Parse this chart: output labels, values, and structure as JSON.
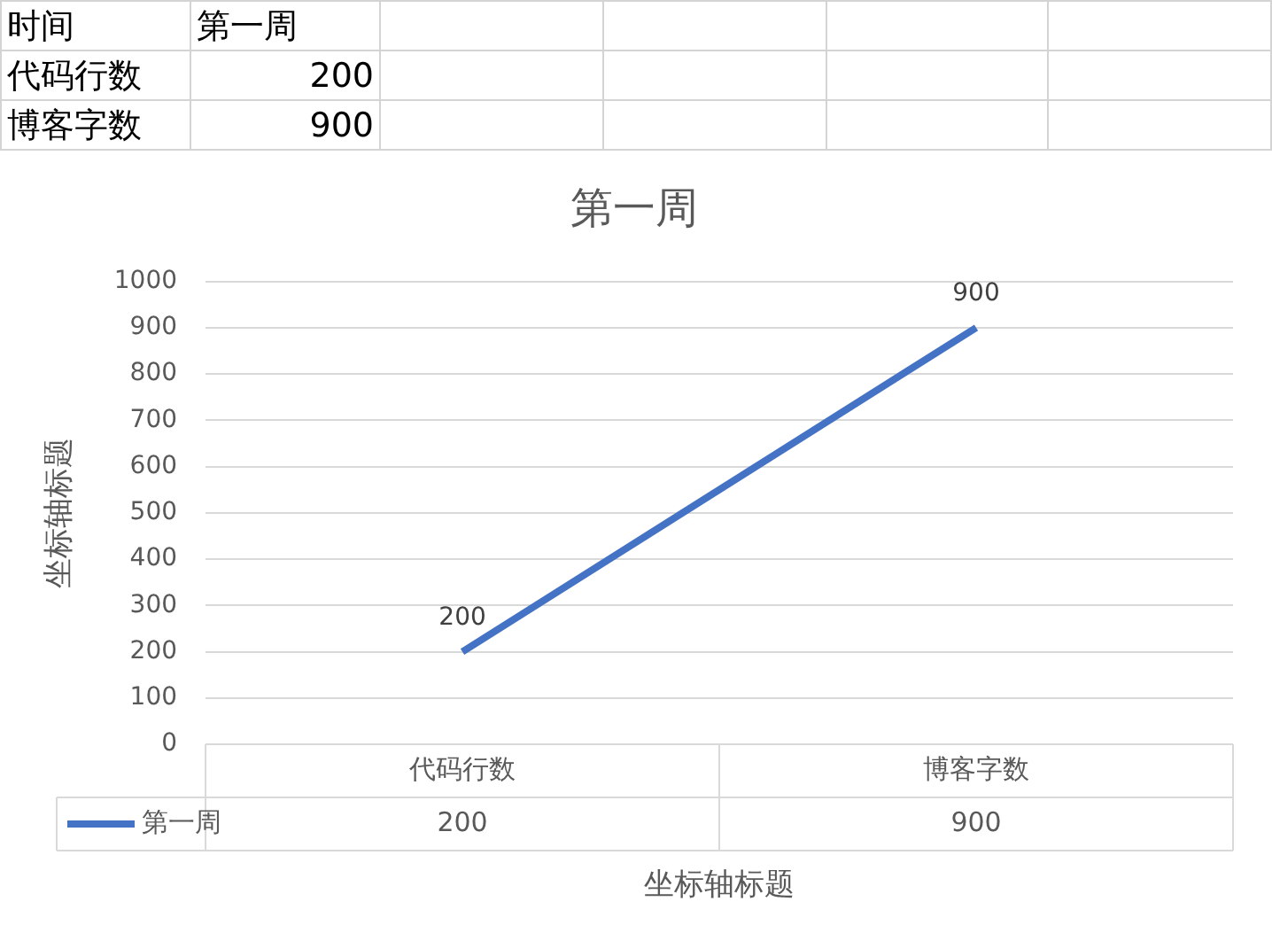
{
  "chart_data": {
    "type": "line",
    "title": "第一周",
    "xlabel": "坐标轴标题",
    "ylabel": "坐标轴标题",
    "annotations": [
      "时间",
      "第一周",
      "代码行数",
      "200",
      "博客字数",
      "900"
    ],
    "categories": [
      "代码行数",
      "博客字数"
    ],
    "series": [
      {
        "name": "第一周",
        "color": "#4472c4",
        "values": [
          200,
          900
        ]
      }
    ],
    "ylim": [
      0,
      1000
    ],
    "yticks": [
      0,
      100,
      200,
      300,
      400,
      500,
      600,
      700,
      800,
      900,
      1000
    ],
    "grid": "y",
    "legend": "bottom",
    "data_labels": true
  }
}
